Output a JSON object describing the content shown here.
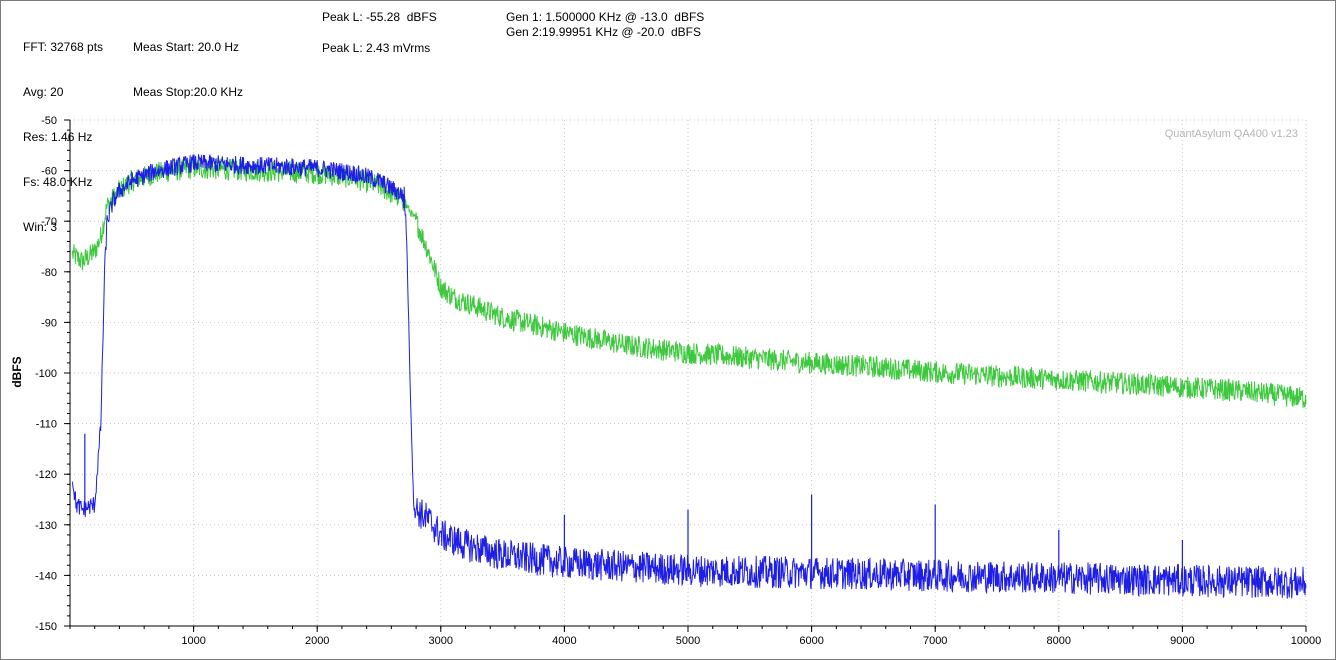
{
  "info": {
    "col1": [
      "FFT: 32768 pts",
      "Avg: 20",
      "Res: 1.46 Hz",
      "Fs: 48.0 KHz",
      "Win: 3"
    ],
    "col2": [
      "Meas Start: 20.0 Hz",
      "Meas Stop:20.0 KHz"
    ],
    "peak_db": "Peak L: -55.28  dBFS",
    "peak_rms": "Peak L: 2.43 mVrms",
    "gen1": "Gen 1: 1.500000 KHz @ -13.0  dBFS",
    "gen2": "Gen 2:19.99951 KHz @ -20.0  dBFS"
  },
  "watermark": "QuantAsylum QA400 v1.23",
  "chart_data": {
    "type": "line",
    "title": "",
    "xlabel": "",
    "ylabel": "dBFS",
    "xlim": [
      0,
      10000
    ],
    "ylim": [
      -150,
      -50
    ],
    "xticks": [
      1000,
      2000,
      3000,
      4000,
      5000,
      6000,
      7000,
      8000,
      9000,
      10000
    ],
    "yticks": [
      -50,
      -60,
      -70,
      -80,
      -90,
      -100,
      -110,
      -120,
      -130,
      -140,
      -150
    ],
    "grid": true,
    "colors": {
      "green": "#3ec83e",
      "blue": "#1e1ee6"
    },
    "series": [
      {
        "color": "#3ec83e",
        "x": [
          20,
          100,
          200,
          250,
          300,
          400,
          500,
          700,
          1000,
          1500,
          2000,
          2300,
          2500,
          2600,
          2700,
          2800,
          2900,
          3000,
          3100,
          3300,
          3500,
          4000,
          4500,
          5000,
          5500,
          6000,
          6500,
          7000,
          7500,
          8000,
          8500,
          9000,
          9500,
          10000
        ],
        "y": [
          -76.5,
          -78,
          -76,
          -73,
          -67,
          -64,
          -62,
          -60.5,
          -59.5,
          -60,
          -60.5,
          -61.5,
          -63,
          -64.5,
          -66,
          -70,
          -76,
          -83,
          -85,
          -87,
          -89,
          -92,
          -94.5,
          -96,
          -97,
          -98,
          -98.8,
          -99.8,
          -100.6,
          -101.3,
          -102,
          -102.8,
          -103.6,
          -105
        ]
      },
      {
        "color": "#1e1ee6",
        "x": [
          20,
          50,
          100,
          200,
          250,
          280,
          300,
          350,
          400,
          500,
          700,
          1000,
          1500,
          2000,
          2300,
          2500,
          2600,
          2700,
          2720,
          2750,
          2780,
          2800,
          2900,
          3000,
          3200,
          3500,
          4000,
          5000,
          6000,
          7000,
          8000,
          9000,
          10000
        ],
        "y": [
          -121,
          -126,
          -127,
          -126,
          -110,
          -80,
          -70,
          -66,
          -64,
          -62,
          -60,
          -58.5,
          -59,
          -59.5,
          -60.5,
          -62,
          -63.5,
          -65,
          -70,
          -100,
          -126,
          -127,
          -129,
          -132,
          -134,
          -136,
          -137.5,
          -139,
          -139.5,
          -140,
          -140.5,
          -141,
          -141.5
        ]
      }
    ],
    "spikes_blue": [
      {
        "x": 120,
        "y": -112
      },
      {
        "x": 1000,
        "y": -58
      },
      {
        "x": 3000,
        "y": -132
      },
      {
        "x": 4000,
        "y": -128
      },
      {
        "x": 5000,
        "y": -127
      },
      {
        "x": 6000,
        "y": -124
      },
      {
        "x": 7000,
        "y": -126
      },
      {
        "x": 8000,
        "y": -131
      },
      {
        "x": 9000,
        "y": -133
      }
    ]
  }
}
